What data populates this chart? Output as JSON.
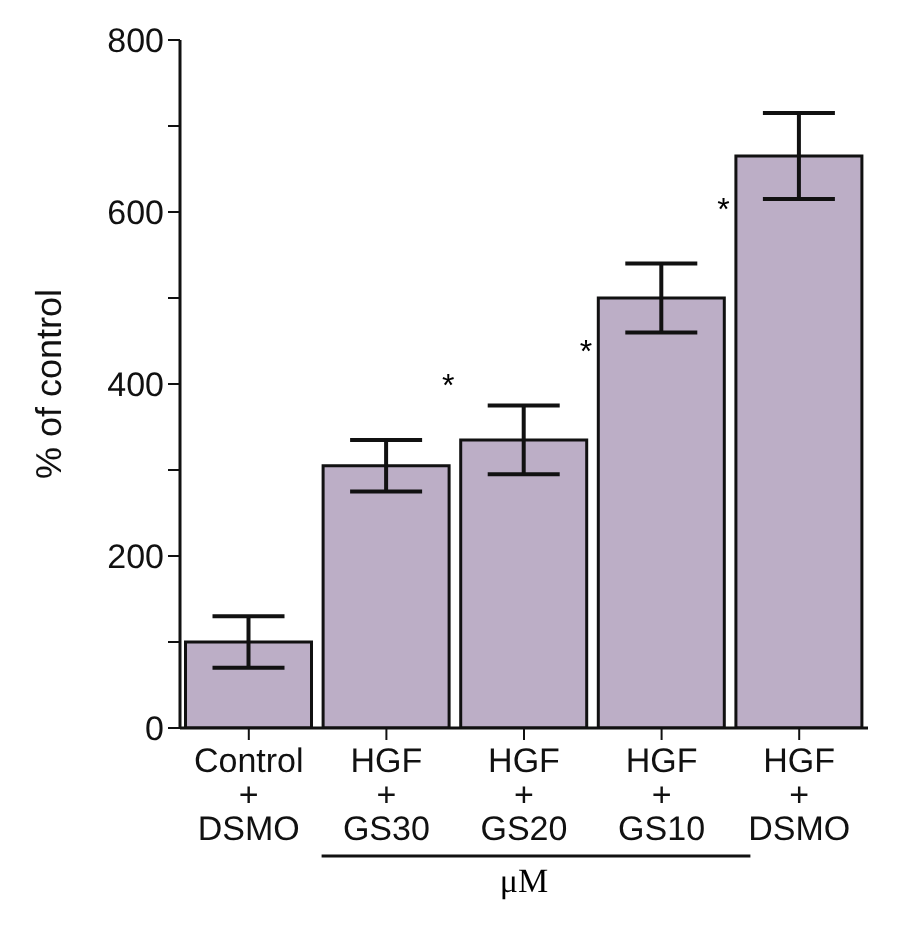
{
  "chart_data": {
    "type": "bar",
    "ylabel": "% of control",
    "categories": [
      "Control\n+\nDSMO",
      "HGF\n+\nGS30",
      "HGF\n+\nGS20",
      "HGF\n+\nGS10",
      "HGF\n+\nDSMO"
    ],
    "values": [
      100,
      305,
      335,
      500,
      665
    ],
    "errors": [
      30,
      30,
      40,
      40,
      50
    ],
    "color": "#bcaec6",
    "ylim": [
      0,
      800
    ],
    "yticks": [
      0,
      {
        "value": 100,
        "label": null
      },
      200,
      {
        "value": 300,
        "label": null
      },
      400,
      {
        "value": 500,
        "label": null
      },
      600,
      {
        "value": 700,
        "label": null
      },
      800
    ],
    "annotations": [
      "*",
      "*",
      "*",
      "μM"
    ]
  }
}
